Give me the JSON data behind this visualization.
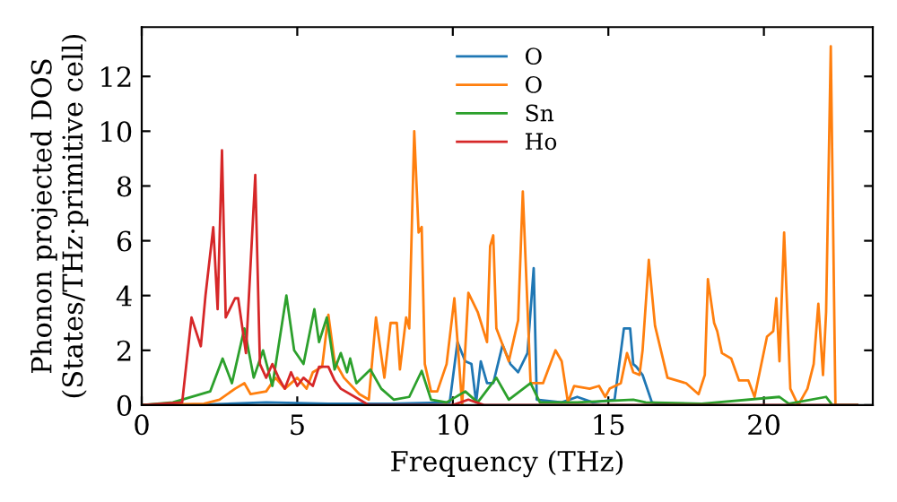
{
  "chart_data": {
    "type": "line",
    "xlabel": "Frequency (THz)",
    "ylabel": "Phonon projected DOS\n(States/THz·primitive cell)",
    "xlim": [
      0,
      23.5
    ],
    "ylim": [
      0,
      13.8
    ],
    "xticks": [
      0,
      5,
      10,
      15,
      20
    ],
    "yticks": [
      0,
      2,
      4,
      6,
      8,
      10,
      12
    ],
    "grid": false,
    "legend": "top",
    "marker": "none",
    "line_style": "solid",
    "series": [
      {
        "name": "O",
        "color": "#1f77b4",
        "x": [
          0,
          2,
          4,
          6,
          8,
          9.9,
          10.15,
          10.4,
          10.6,
          10.75,
          10.9,
          11.1,
          11.3,
          11.6,
          11.85,
          12.1,
          12.4,
          12.6,
          12.7,
          13.5,
          14,
          14.5,
          15.2,
          15.5,
          15.7,
          15.8,
          15.9,
          16.1,
          16.4,
          17
        ],
        "values": [
          0,
          0.02,
          0.1,
          0.05,
          0.05,
          0.1,
          2.3,
          1.6,
          1.5,
          0.1,
          1.6,
          0.8,
          0.8,
          2.2,
          1.5,
          1.2,
          1.9,
          5.0,
          0.2,
          0.1,
          0.3,
          0.1,
          0.2,
          2.8,
          2.8,
          1.5,
          1.4,
          1.1,
          0.1,
          0
        ]
      },
      {
        "name": "O",
        "color": "#ff7f0e",
        "x": [
          0,
          2,
          2.5,
          3.0,
          3.3,
          3.5,
          4.0,
          4.3,
          4.6,
          5.0,
          5.3,
          5.5,
          5.8,
          6.0,
          6.2,
          6.5,
          7.0,
          7.3,
          7.53,
          7.8,
          8.0,
          8.2,
          8.3,
          8.5,
          8.6,
          8.76,
          8.9,
          9.0,
          9.1,
          9.3,
          9.5,
          9.8,
          10.05,
          10.3,
          10.5,
          10.8,
          11.1,
          11.2,
          11.3,
          11.4,
          11.8,
          12.1,
          12.25,
          12.5,
          12.9,
          13.3,
          13.5,
          13.7,
          13.9,
          14.4,
          14.7,
          14.9,
          15.04,
          15.4,
          15.6,
          15.8,
          16.0,
          16.1,
          16.3,
          16.5,
          16.9,
          17.5,
          17.9,
          18.1,
          18.2,
          18.4,
          18.5,
          18.65,
          18.95,
          19.2,
          19.5,
          19.7,
          20.1,
          20.3,
          20.4,
          20.5,
          20.65,
          20.85,
          21.1,
          21.4,
          21.6,
          21.75,
          21.9,
          22.0,
          22.15,
          22.3,
          23
        ],
        "values": [
          0,
          0.05,
          0.2,
          0.6,
          0.8,
          0.4,
          0.5,
          1.0,
          0.6,
          1.0,
          0.6,
          1.2,
          1.4,
          3.3,
          1.6,
          1.0,
          0.4,
          0.2,
          3.2,
          1.0,
          3.0,
          3.0,
          1.3,
          3.2,
          2.8,
          10.0,
          6.3,
          6.5,
          1.5,
          0.5,
          0.5,
          1.5,
          3.9,
          0.0,
          4.1,
          3.4,
          2.3,
          5.8,
          6.2,
          2.8,
          1.6,
          3.1,
          7.8,
          0.8,
          0.8,
          2.0,
          1.6,
          0.1,
          0.7,
          0.6,
          0.7,
          0.3,
          0.6,
          0.8,
          1.9,
          1.2,
          1.1,
          2.0,
          5.3,
          2.9,
          1.0,
          0.8,
          0.4,
          1.1,
          4.6,
          3.0,
          2.7,
          1.9,
          1.7,
          0.9,
          0.9,
          0.3,
          2.5,
          2.7,
          3.9,
          1.6,
          6.3,
          0.6,
          0.0,
          0.6,
          1.5,
          3.7,
          1.1,
          3.4,
          13.1,
          0,
          0
        ]
      },
      {
        "name": "Sn",
        "color": "#2ca02c",
        "x": [
          0,
          1,
          2.2,
          2.6,
          2.9,
          3.3,
          3.6,
          3.9,
          4.2,
          4.65,
          4.9,
          5.2,
          5.55,
          5.7,
          5.95,
          6.2,
          6.4,
          6.6,
          6.7,
          6.9,
          7.35,
          7.7,
          8.1,
          8.6,
          9.0,
          9.3,
          9.8,
          10.4,
          10.8,
          11.4,
          11.8,
          12.5,
          12.8,
          14,
          15.8,
          16.2,
          18,
          20.5,
          20.8,
          22.0,
          22.2,
          23
        ],
        "values": [
          0,
          0.1,
          0.5,
          1.7,
          0.8,
          2.8,
          1.0,
          2.0,
          0.7,
          4.0,
          2.0,
          1.5,
          3.5,
          2.3,
          3.2,
          1.3,
          1.9,
          1.2,
          1.7,
          0.8,
          1.3,
          0.6,
          0.2,
          0.3,
          1.25,
          0.2,
          0.1,
          0.5,
          0.1,
          1.0,
          0.2,
          0.8,
          0.1,
          0.1,
          0.2,
          0.1,
          0.05,
          0.3,
          0.05,
          0.3,
          0,
          0
        ]
      },
      {
        "name": "Ho",
        "color": "#d62728",
        "x": [
          0,
          1.3,
          1.6,
          1.9,
          2.05,
          2.3,
          2.44,
          2.58,
          2.7,
          3.0,
          3.1,
          3.35,
          3.65,
          3.8,
          4.0,
          4.2,
          4.4,
          4.6,
          4.8,
          5.0,
          5.2,
          5.5,
          5.7,
          6.0,
          6.2,
          6.4,
          7.0,
          7.3,
          10,
          10.5,
          11,
          23
        ],
        "values": [
          0,
          0.1,
          3.2,
          2.15,
          4.0,
          6.5,
          3.5,
          9.3,
          3.2,
          3.9,
          3.9,
          1.9,
          8.4,
          1.5,
          1.0,
          1.5,
          1.0,
          0.6,
          1.2,
          0.7,
          1.0,
          0.7,
          1.4,
          1.4,
          0.9,
          0.6,
          0.2,
          0,
          0,
          0.2,
          0,
          0
        ]
      }
    ]
  }
}
